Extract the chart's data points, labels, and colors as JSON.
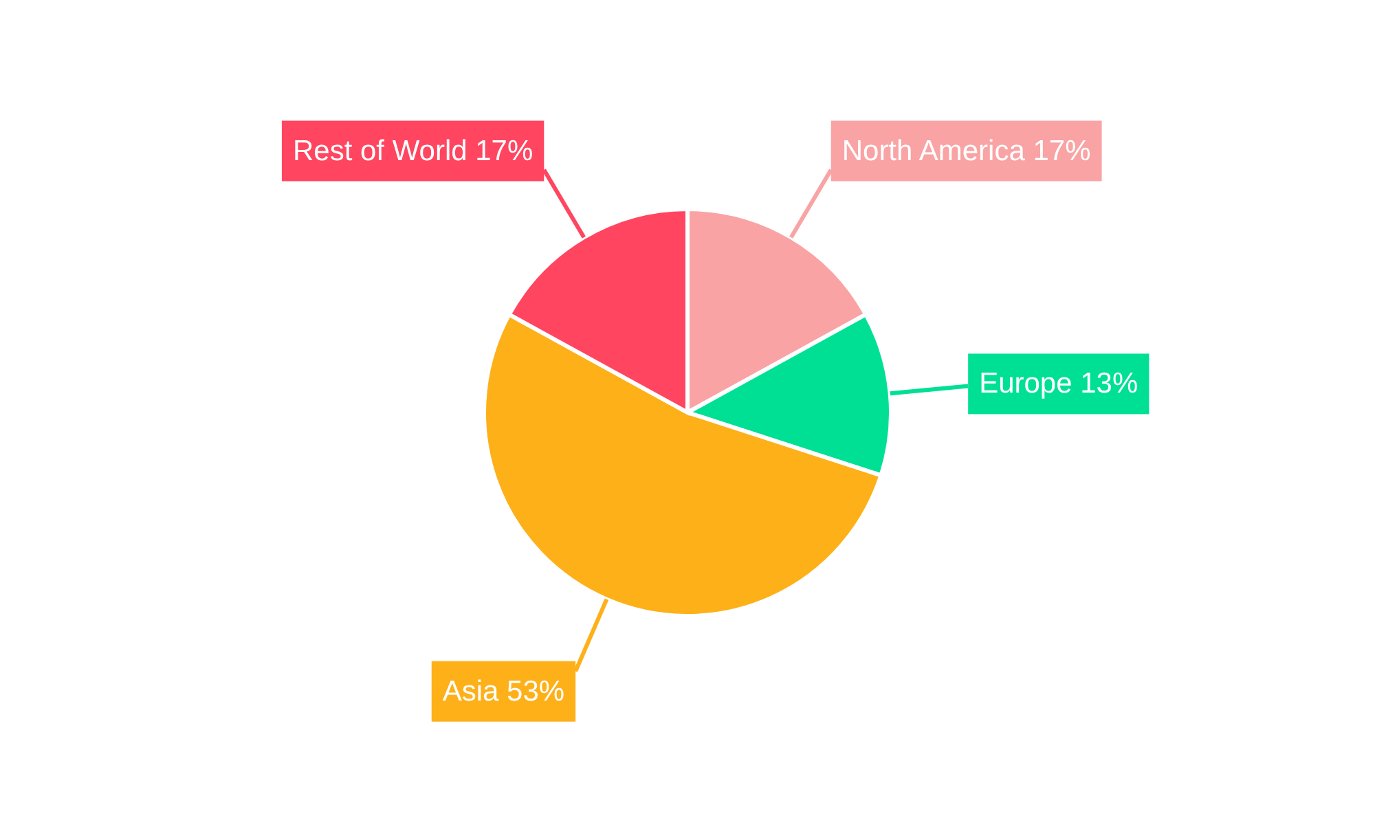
{
  "chart_data": {
    "type": "pie",
    "categories": [
      "North America",
      "Europe",
      "Asia",
      "Rest of World"
    ],
    "values": [
      17,
      13,
      53,
      17
    ],
    "value_labels": [
      "17%",
      "13%",
      "53%",
      "17%"
    ],
    "colors": [
      "#f9a3a4",
      "#00e094",
      "#feb019",
      "#ff4560"
    ]
  }
}
